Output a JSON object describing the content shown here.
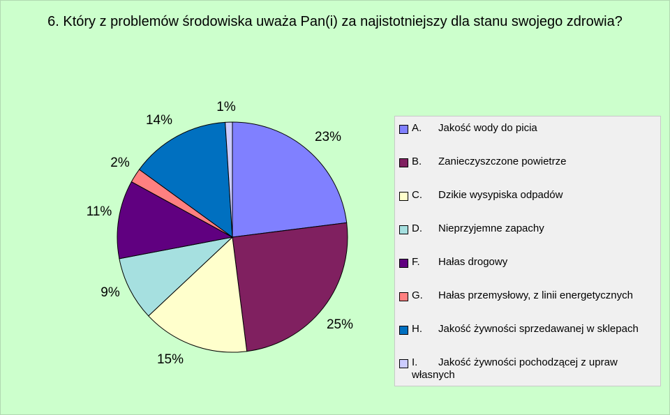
{
  "title": "6. Który z problemów środowiska uważa Pan(i) za najistotniejszy dla stanu swojego zdrowia?",
  "chart_data": {
    "type": "pie",
    "title": "6. Który z problemów środowiska uważa Pan(i) za najistotniejszy dla stanu swojego zdrowia?",
    "slices": [
      {
        "key": "A.",
        "label": "Jakość wody do picia",
        "value": 23,
        "label_text": "23%",
        "color": "#8080ff"
      },
      {
        "key": "B.",
        "label": "Zanieczyszczone powietrze",
        "value": 25,
        "label_text": "25%",
        "color": "#802060"
      },
      {
        "key": "C.",
        "label": "Dzikie wysypiska odpadów",
        "value": 15,
        "label_text": "15%",
        "color": "#ffffcc"
      },
      {
        "key": "D.",
        "label": "Nieprzyjemne zapachy",
        "value": 9,
        "label_text": "9%",
        "color": "#a6e0e0"
      },
      {
        "key": "F.",
        "label": "Hałas drogowy",
        "value": 11,
        "label_text": "11%",
        "color": "#600080"
      },
      {
        "key": "G.",
        "label": "Hałas przemysłowy, z linii energetycznych",
        "value": 2,
        "label_text": "2%",
        "color": "#ff8080"
      },
      {
        "key": "H.",
        "label": "Jakość żywności sprzedawanej w sklepach",
        "value": 14,
        "label_text": "14%",
        "color": "#0070c0"
      },
      {
        "key": "I.",
        "label": "Jakość żywności pochodzącej z upraw własnych",
        "value": 1,
        "label_text": "1%",
        "color": "#ccccff"
      }
    ],
    "legend_position": "right"
  }
}
